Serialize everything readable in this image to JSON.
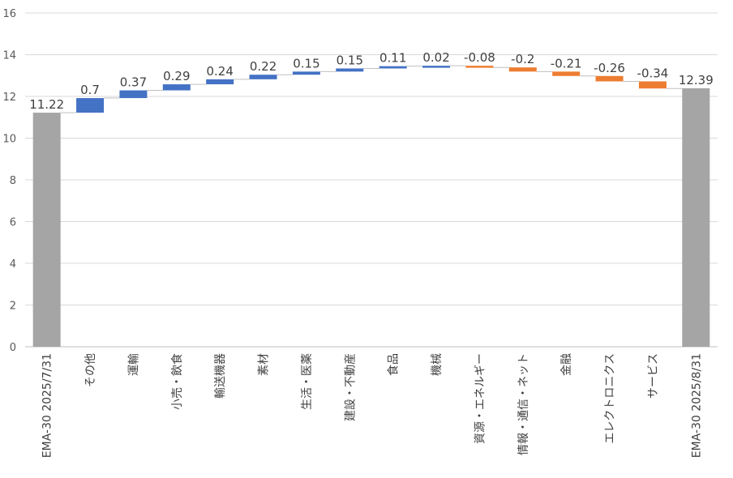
{
  "chart_data": {
    "type": "bar",
    "subtype": "waterfall",
    "title": "",
    "xlabel": "",
    "ylabel": "",
    "ylim": [
      0,
      16
    ],
    "yticks": [
      0,
      2,
      4,
      6,
      8,
      10,
      12,
      14,
      16
    ],
    "grid": true,
    "legend": "none",
    "categories": [
      "EMA-30 2025/7/31",
      "その他",
      "運輸",
      "小売・飲食",
      "輸送機器",
      "素材",
      "生活・医薬",
      "建設・不動産",
      "食品",
      "機械",
      "資源・エネルギー",
      "情報・通信・ネット",
      "金融",
      "エレクトロニクス",
      "サービス",
      "EMA-30 2025/8/31"
    ],
    "values": [
      11.22,
      0.7,
      0.37,
      0.29,
      0.24,
      0.22,
      0.15,
      0.15,
      0.11,
      0.02,
      -0.08,
      -0.2,
      -0.21,
      -0.26,
      -0.34,
      12.39
    ],
    "labels": [
      "11.22",
      "0.7",
      "0.37",
      "0.29",
      "0.24",
      "0.22",
      "0.15",
      "0.15",
      "0.11",
      "0.02",
      "-0.08",
      "-0.2",
      "-0.21",
      "-0.26",
      "-0.34",
      "12.39"
    ],
    "bar_kind": [
      "total",
      "delta",
      "delta",
      "delta",
      "delta",
      "delta",
      "delta",
      "delta",
      "delta",
      "delta",
      "delta",
      "delta",
      "delta",
      "delta",
      "delta",
      "total"
    ],
    "colors": {
      "total": "#a5a5a5",
      "increase": "#4472c4",
      "decrease": "#ed7d31",
      "grid": "#d9d9d9",
      "connector": "#c0c0c0"
    }
  }
}
